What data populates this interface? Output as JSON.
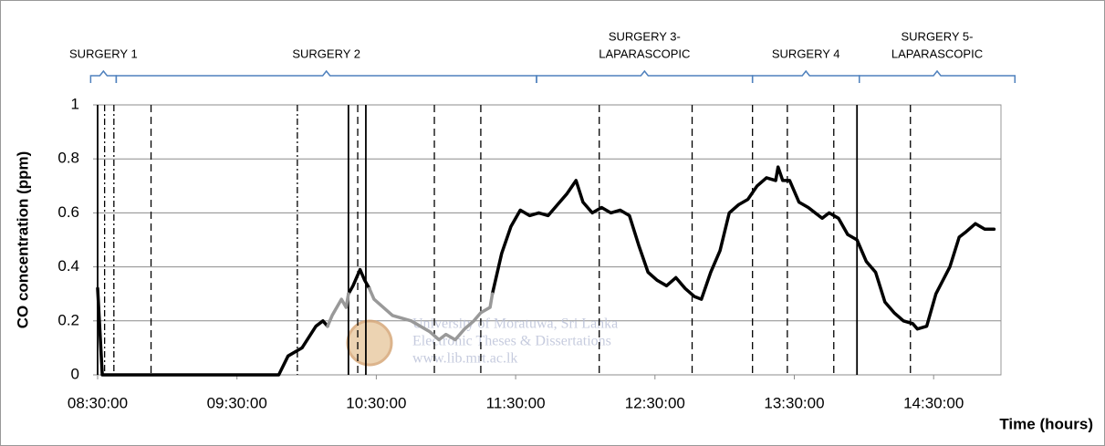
{
  "chart_data": {
    "type": "line",
    "y_label": "CO concentration (ppm)",
    "x_label": "Time (hours)",
    "watermark": [
      "University of Moratuwa, Sri Lanka",
      "Electronic Theses & Dissertations",
      "www.lib.mrt.ac.lk"
    ],
    "xlim": [
      510,
      899
    ],
    "xticks": [
      {
        "value": 510,
        "label": "08:30:00"
      },
      {
        "value": 570,
        "label": "09:30:00"
      },
      {
        "value": 630,
        "label": "10:30:00"
      },
      {
        "value": 690,
        "label": "11:30:00"
      },
      {
        "value": 750,
        "label": "12:30:00"
      },
      {
        "value": 810,
        "label": "13:30:00"
      },
      {
        "value": 870,
        "label": "14:30:00"
      }
    ],
    "ylim": [
      0,
      1
    ],
    "yticks": [
      0,
      0.2,
      0.4,
      0.6,
      0.8,
      1
    ],
    "grid": true,
    "x": [
      510,
      512,
      588,
      592,
      598,
      604,
      607,
      609,
      611,
      615,
      617,
      618,
      620,
      623,
      625,
      627,
      629,
      637,
      645,
      653,
      657,
      660,
      664,
      668,
      672,
      675,
      679,
      680,
      684,
      688,
      692,
      696,
      700,
      704,
      708,
      712,
      716,
      719,
      723,
      727,
      731,
      735,
      739,
      743,
      747,
      751,
      755,
      759,
      763,
      767,
      770,
      774,
      778,
      782,
      786,
      790,
      794,
      798,
      802,
      803,
      805,
      808,
      812,
      816,
      822,
      825,
      829,
      833,
      837,
      841,
      845,
      849,
      853,
      857,
      861,
      863,
      867,
      871,
      877,
      881,
      884,
      888,
      892,
      896
    ],
    "series": [
      {
        "color": "#000000",
        "values": [
          0.32,
          0,
          0,
          0.07,
          0.1,
          0.18,
          0.2,
          0.18,
          null,
          null,
          null,
          0.3,
          0.33,
          0.39,
          0.35,
          0.32,
          null,
          null,
          null,
          null,
          null,
          null,
          null,
          null,
          null,
          null,
          null,
          0.3,
          0.45,
          0.55,
          0.61,
          0.59,
          0.6,
          0.59,
          0.63,
          0.67,
          0.72,
          0.64,
          0.6,
          0.62,
          0.6,
          0.61,
          0.59,
          0.48,
          0.38,
          0.35,
          0.33,
          0.36,
          0.32,
          0.29,
          0.28,
          0.38,
          0.46,
          0.6,
          0.63,
          0.65,
          0.7,
          0.73,
          0.72,
          0.77,
          0.72,
          0.72,
          0.64,
          0.62,
          0.58,
          0.6,
          0.58,
          0.52,
          0.5,
          0.42,
          0.38,
          0.27,
          0.23,
          0.2,
          0.19,
          0.17,
          0.18,
          0.3,
          0.4,
          0.51,
          0.53,
          0.56,
          0.54,
          0.54
        ]
      },
      {
        "color": "#999999",
        "values": [
          null,
          null,
          null,
          null,
          null,
          null,
          null,
          0.18,
          0.22,
          0.28,
          0.25,
          0.3,
          null,
          null,
          null,
          0.32,
          0.28,
          0.22,
          0.2,
          0.16,
          0.13,
          0.15,
          0.13,
          0.17,
          0.2,
          0.23,
          0.25,
          0.3,
          null,
          null,
          null,
          null,
          null,
          null,
          null,
          null,
          null,
          null,
          null,
          null,
          null,
          null,
          null,
          null,
          null,
          null,
          null,
          null,
          null,
          null,
          null,
          null,
          null,
          null,
          null,
          null,
          null,
          null,
          null,
          null,
          null,
          null,
          null,
          null,
          null,
          null,
          null,
          null,
          null,
          null,
          null,
          null,
          null,
          null,
          null,
          null,
          null,
          null,
          null,
          null,
          null,
          null,
          null,
          null
        ]
      }
    ],
    "markers": [
      {
        "x": 510,
        "style": "solid"
      },
      {
        "x": 513,
        "style": "dashdot"
      },
      {
        "x": 517,
        "style": "dashdot"
      },
      {
        "x": 533,
        "style": "dashed"
      },
      {
        "x": 596,
        "style": "dashdot"
      },
      {
        "x": 618,
        "style": "solid"
      },
      {
        "x": 622,
        "style": "dashed"
      },
      {
        "x": 625.5,
        "style": "solid"
      },
      {
        "x": 655,
        "style": "dashed"
      },
      {
        "x": 675,
        "style": "dashed"
      },
      {
        "x": 726,
        "style": "dashed"
      },
      {
        "x": 766,
        "style": "dashed"
      },
      {
        "x": 792,
        "style": "dashed"
      },
      {
        "x": 807,
        "style": "dashed"
      },
      {
        "x": 827,
        "style": "dashed"
      },
      {
        "x": 837,
        "style": "solid"
      },
      {
        "x": 860,
        "style": "dashed"
      }
    ],
    "phases": [
      {
        "label": [
          "SURGERY 1"
        ],
        "start": 507,
        "end": 518
      },
      {
        "label": [
          "SURGERY 2"
        ],
        "start": 518,
        "end": 699
      },
      {
        "label": [
          "SURGERY 3-",
          "LAPARASCOPIC"
        ],
        "start": 699,
        "end": 792
      },
      {
        "label": [
          "SURGERY 4"
        ],
        "start": 792,
        "end": 838
      },
      {
        "label": [
          "SURGERY 5-",
          "LAPARASCOPIC"
        ],
        "start": 838,
        "end": 905
      }
    ]
  }
}
